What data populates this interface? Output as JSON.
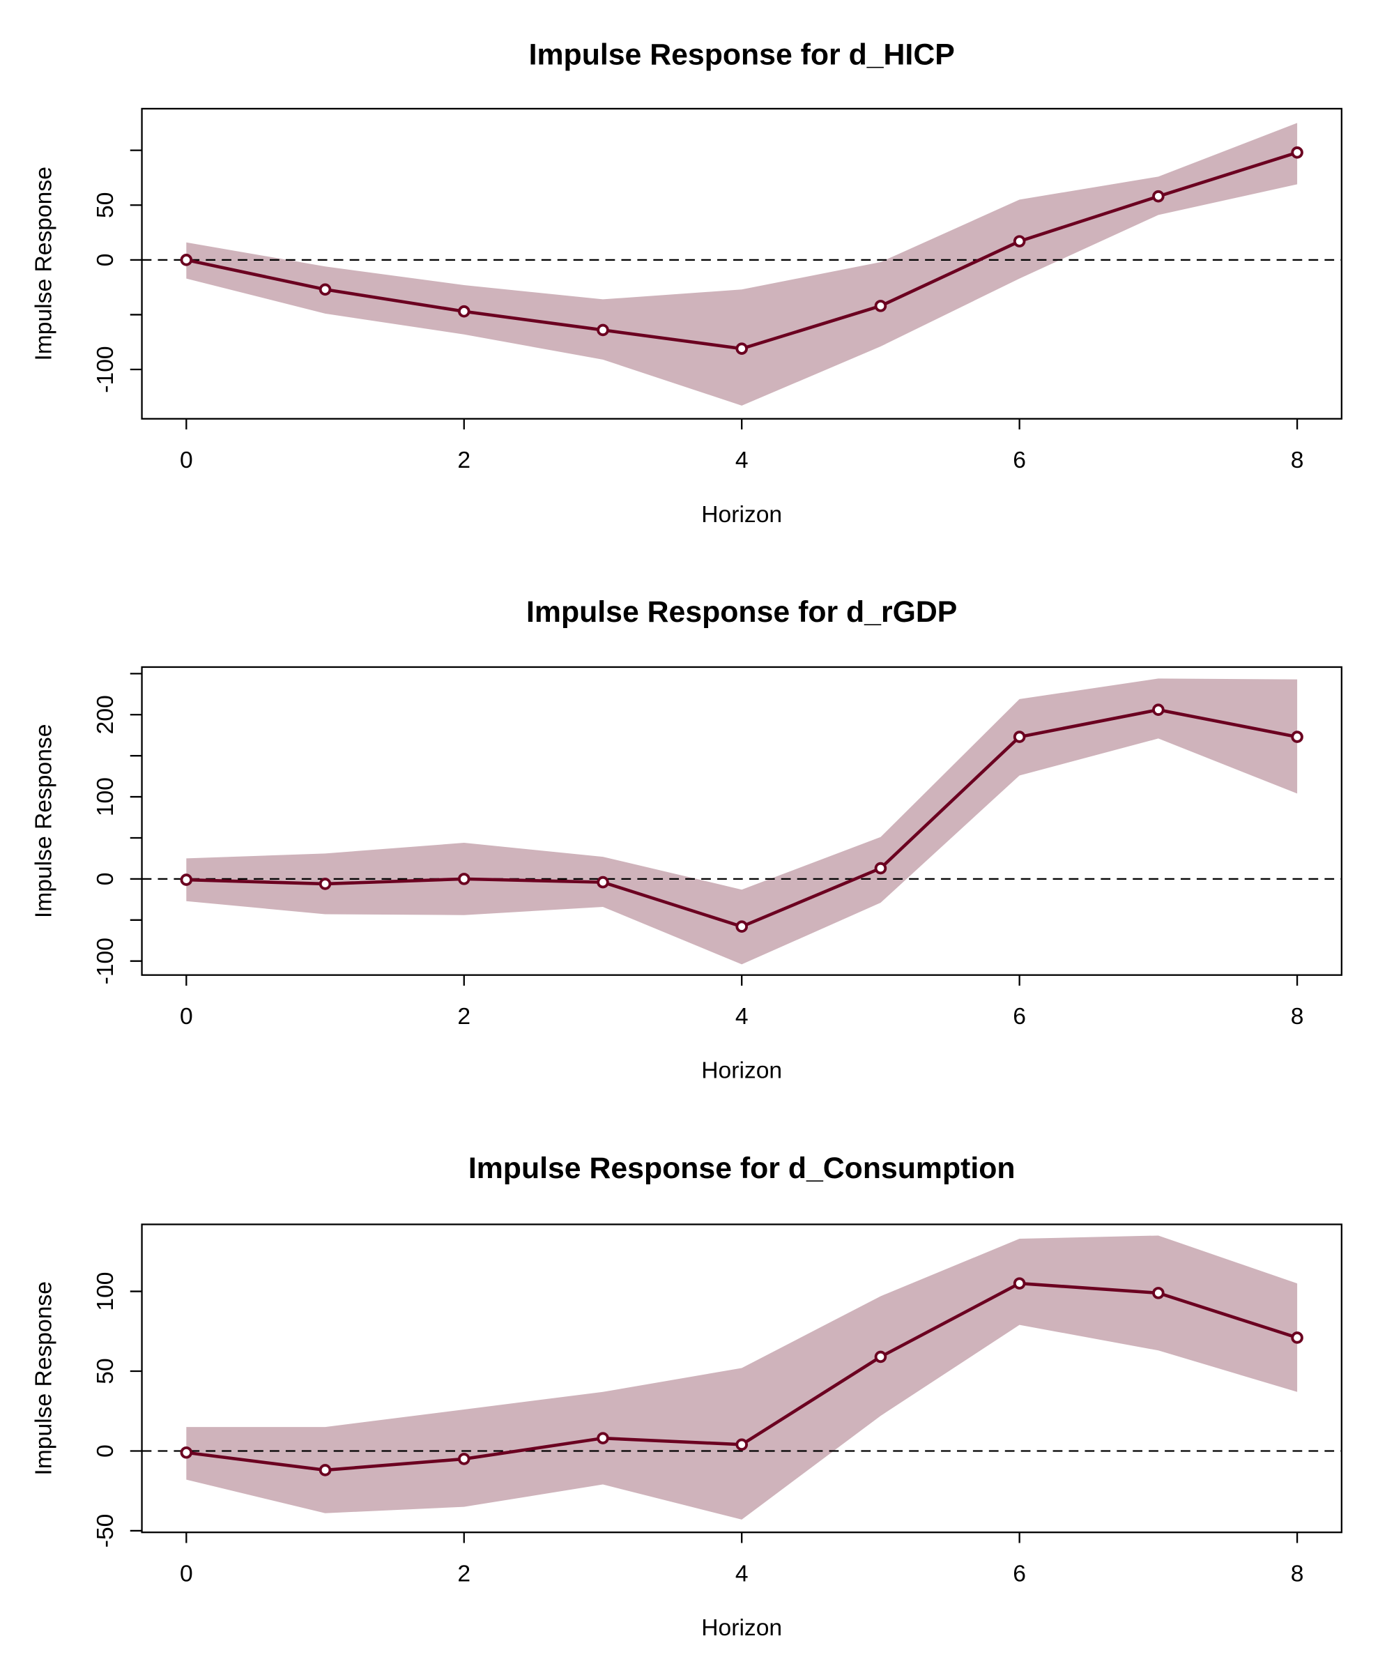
{
  "chart_data": [
    {
      "type": "line",
      "title": "Impulse Response for d_HICP",
      "x_label": "Horizon",
      "y_label": "Impulse Response",
      "x": [
        0,
        1,
        2,
        3,
        4,
        5,
        6,
        7,
        8
      ],
      "values": [
        0,
        -27,
        -47,
        -64,
        -81,
        -42,
        17,
        58,
        98
      ],
      "upper": [
        16,
        -6,
        -23,
        -36,
        -27,
        -2,
        55,
        76,
        125
      ],
      "lower": [
        -17,
        -49,
        -68,
        -91,
        -133,
        -79,
        -17,
        41,
        69
      ],
      "color": "#6b0020",
      "band_color": "#cfb3bb",
      "zero_line": true,
      "xlim": [
        -0.32,
        8.32
      ],
      "xticks": [
        0,
        2,
        4,
        6,
        8
      ],
      "ylim": [
        -145,
        138
      ],
      "yticks": [
        -100,
        0,
        50
      ],
      "yticks_minor": [
        -50,
        100
      ]
    },
    {
      "type": "line",
      "title": "Impulse Response for d_rGDP",
      "x_label": "Horizon",
      "y_label": "Impulse Response",
      "x": [
        0,
        1,
        2,
        3,
        4,
        5,
        6,
        7,
        8
      ],
      "values": [
        -1,
        -6,
        0,
        -4,
        -58,
        13,
        173,
        206,
        173
      ],
      "upper": [
        25,
        31,
        44,
        27,
        -13,
        51,
        219,
        244,
        243
      ],
      "lower": [
        -27,
        -43,
        -44,
        -34,
        -104,
        -29,
        126,
        171,
        104
      ],
      "color": "#6b0020",
      "band_color": "#cfb3bb",
      "zero_line": true,
      "xlim": [
        -0.32,
        8.32
      ],
      "xticks": [
        0,
        2,
        4,
        6,
        8
      ],
      "ylim": [
        -117,
        258
      ],
      "yticks": [
        -100,
        0,
        100,
        200
      ],
      "yticks_minor": [
        -50,
        50,
        150,
        250
      ]
    },
    {
      "type": "line",
      "title": "Impulse Response for d_Consumption",
      "x_label": "Horizon",
      "y_label": "Impulse Response",
      "x": [
        0,
        1,
        2,
        3,
        4,
        5,
        6,
        7,
        8
      ],
      "values": [
        -1,
        -12,
        -5,
        8,
        4,
        59,
        105,
        99,
        71
      ],
      "upper": [
        15,
        15,
        26,
        37,
        52,
        97,
        133,
        135,
        105
      ],
      "lower": [
        -18,
        -39,
        -35,
        -21,
        -43,
        22,
        79,
        63,
        37
      ],
      "color": "#6b0020",
      "band_color": "#cfb3bb",
      "zero_line": true,
      "xlim": [
        -0.32,
        8.32
      ],
      "xticks": [
        0,
        2,
        4,
        6,
        8
      ],
      "ylim": [
        -51,
        142
      ],
      "yticks": [
        -50,
        0,
        50,
        100
      ],
      "yticks_minor": []
    }
  ]
}
